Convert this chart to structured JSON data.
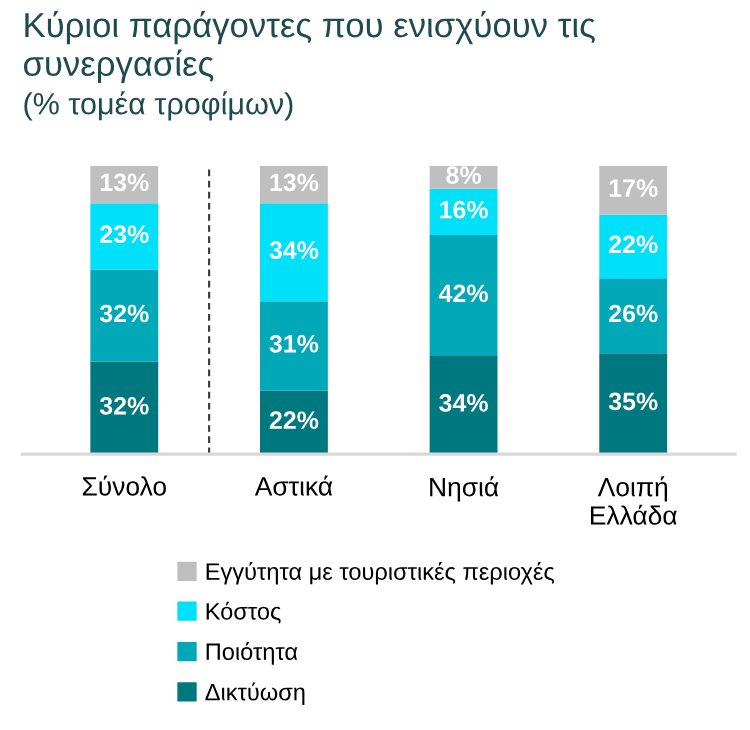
{
  "chart_data": {
    "type": "bar",
    "stacked": true,
    "title": "Κύριοι παράγοντες που ενισχύουν τις συνεργασίες",
    "subtitle": "(% τομέα τροφίμων)",
    "categories": [
      "Σύνολο",
      "Αστικά",
      "Νησιά",
      "Λοιπή Ελλάδα"
    ],
    "series": [
      {
        "name": "Δικτύωση",
        "color": "#00787f",
        "values": [
          32,
          22,
          34,
          35
        ],
        "value_labels": [
          "32%",
          "22%",
          "34%",
          "35%"
        ]
      },
      {
        "name": "Ποιότητα",
        "color": "#00a8b8",
        "values": [
          32,
          31,
          42,
          26
        ],
        "value_labels": [
          "32%",
          "31%",
          "42%",
          "26%"
        ]
      },
      {
        "name": "Κόστος",
        "color": "#00e0f8",
        "values": [
          23,
          34,
          16,
          22
        ],
        "value_labels": [
          "23%",
          "34%",
          "16%",
          "22%"
        ]
      },
      {
        "name": "Εγγύτητα με τουριστικές περιοχές",
        "color": "#bfbfbf",
        "values": [
          13,
          13,
          8,
          17
        ],
        "value_labels": [
          "13%",
          "13%",
          "8%",
          "17%"
        ]
      }
    ],
    "tick_labels": "x",
    "legend": "bottom"
  }
}
